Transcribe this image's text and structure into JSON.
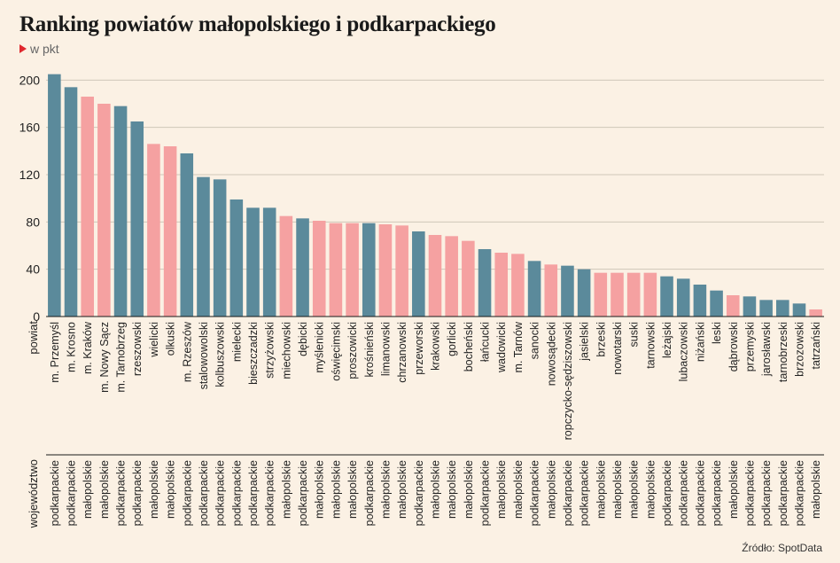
{
  "header": {
    "title": "Ranking powiatów małopolskiego i podkarpackiego",
    "subtitle": "w pkt"
  },
  "footer": {
    "source": "Źródło: SpotData"
  },
  "colors": {
    "podkarpackie": "#5b8a9b",
    "małopolskie": "#f5a1a1",
    "grid": "#cfc6b9",
    "background": "#fbf1e4"
  },
  "chart_data": {
    "type": "bar",
    "title": "Ranking powiatów małopolskiego i podkarpackiego",
    "subtitle": "w pkt",
    "xlabel": "powiat",
    "xlabel2": "województwo",
    "ylabel": "",
    "ylim": [
      0,
      210
    ],
    "yticks": [
      0,
      40,
      80,
      120,
      160,
      200
    ],
    "grid": true,
    "categories": [
      "m. Przemyśl",
      "m. Krosno",
      "m. Kraków",
      "m. Nowy Sącz",
      "m. Tarnobrzeg",
      "rzeszowski",
      "wielicki",
      "olkuski",
      "m. Rzeszów",
      "stalowowolski",
      "kolbuszowski",
      "mielecki",
      "bieszczadzki",
      "strzyżowski",
      "miechowski",
      "dębicki",
      "myślenicki",
      "oświęcimski",
      "proszowicki",
      "krośnieński",
      "limanowski",
      "chrzanowski",
      "przeworski",
      "krakowski",
      "gorlicki",
      "bocheński",
      "łańcucki",
      "wadowicki",
      "m. Tarnów",
      "sanocki",
      "nowosądecki",
      "ropczycko-sędziszowski",
      "jasielski",
      "brzeski",
      "nowotarski",
      "suski",
      "tarnowski",
      "leżajski",
      "lubaczowski",
      "niżański",
      "leski",
      "dąbrowski",
      "przemyski",
      "jarosławski",
      "tarnobrzeski",
      "brzozowski",
      "tatrzański"
    ],
    "groups": [
      "podkarpackie",
      "podkarpackie",
      "małopolskie",
      "małopolskie",
      "podkarpackie",
      "podkarpackie",
      "małopolskie",
      "małopolskie",
      "podkarpackie",
      "podkarpackie",
      "podkarpackie",
      "podkarpackie",
      "podkarpackie",
      "podkarpackie",
      "małopolskie",
      "podkarpackie",
      "małopolskie",
      "małopolskie",
      "małopolskie",
      "podkarpackie",
      "małopolskie",
      "małopolskie",
      "podkarpackie",
      "małopolskie",
      "małopolskie",
      "małopolskie",
      "podkarpackie",
      "małopolskie",
      "małopolskie",
      "podkarpackie",
      "małopolskie",
      "podkarpackie",
      "podkarpackie",
      "małopolskie",
      "małopolskie",
      "małopolskie",
      "małopolskie",
      "podkarpackie",
      "podkarpackie",
      "podkarpackie",
      "podkarpackie",
      "małopolskie",
      "podkarpackie",
      "podkarpackie",
      "podkarpackie",
      "podkarpackie",
      "małopolskie"
    ],
    "values": [
      205,
      194,
      186,
      180,
      178,
      165,
      146,
      144,
      138,
      118,
      116,
      99,
      92,
      92,
      85,
      83,
      81,
      79,
      79,
      79,
      78,
      77,
      72,
      69,
      68,
      64,
      57,
      54,
      53,
      47,
      44,
      43,
      40,
      37,
      37,
      37,
      37,
      34,
      32,
      27,
      22,
      18,
      17,
      14,
      14,
      11,
      6
    ]
  }
}
